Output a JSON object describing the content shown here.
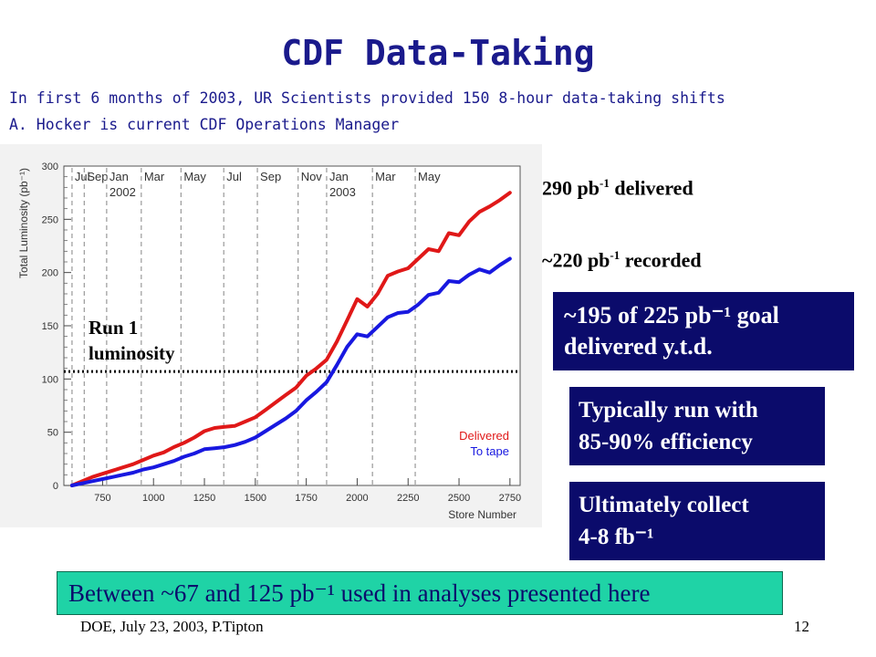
{
  "slide": {
    "title": "CDF Data-Taking",
    "subtitle_1": "In first 6 months of 2003, UR Scientists provided 150 8-hour data-taking shifts",
    "subtitle_2": "A. Hocker is current CDF Operations Manager",
    "footer_left": "DOE, July 23, 2003,  P.Tipton",
    "page_number": "12"
  },
  "notes": {
    "delivered_value": "290 pb",
    "delivered_exp": "-1",
    "delivered_suffix": " delivered",
    "recorded_value": "~220 pb",
    "recorded_exp": "-1",
    "recorded_suffix": " recorded"
  },
  "boxes": {
    "goal_line1": "~195 of 225 pb⁻¹ goal",
    "goal_line2": "delivered    y.t.d.",
    "efficiency_line1": "Typically run with",
    "efficiency_line2": "85-90% efficiency",
    "collect_line1": "Ultimately collect",
    "collect_line2": "4-8 fb⁻¹",
    "analyses": "Between ~67 and 125 pb⁻¹  used in analyses presented here"
  },
  "colors": {
    "title": "#1a1a8c",
    "delivered": "#e01818",
    "to_tape": "#1818e0",
    "note_red": "#cc1111",
    "note_navy": "#0b0b6b",
    "box_fill": "#0b0b6b",
    "bottom_fill": "#1fd3a6"
  },
  "chart_data": {
    "type": "line",
    "xlabel": "Store Number",
    "ylabel": "Total Luminosity (pb⁻¹)",
    "xlim": [
      560,
      2800
    ],
    "ylim": [
      0,
      300
    ],
    "x_ticks": [
      750,
      1000,
      1250,
      1500,
      1750,
      2000,
      2250,
      2500,
      2750
    ],
    "y_ticks": [
      0,
      50,
      100,
      150,
      200,
      250,
      300
    ],
    "grid": false,
    "legend_position": "bottom-right",
    "month_markers": [
      {
        "x": 600,
        "label": "Jul",
        "year": ""
      },
      {
        "x": 660,
        "label": "Sep",
        "year": ""
      },
      {
        "x": 770,
        "label": "Jan",
        "year": "2002"
      },
      {
        "x": 940,
        "label": "Mar",
        "year": ""
      },
      {
        "x": 1135,
        "label": "May",
        "year": ""
      },
      {
        "x": 1345,
        "label": "Jul",
        "year": ""
      },
      {
        "x": 1510,
        "label": "Sep",
        "year": ""
      },
      {
        "x": 1710,
        "label": "Nov",
        "year": ""
      },
      {
        "x": 1850,
        "label": "Jan",
        "year": "2003"
      },
      {
        "x": 2075,
        "label": "Mar",
        "year": ""
      },
      {
        "x": 2285,
        "label": "May",
        "year": ""
      }
    ],
    "reference_line": {
      "label": "Run 1\nluminosity",
      "y": 107
    },
    "series": [
      {
        "name": "Delivered",
        "color": "#e01818",
        "x": [
          600,
          650,
          700,
          750,
          800,
          850,
          900,
          950,
          1000,
          1050,
          1100,
          1150,
          1200,
          1250,
          1300,
          1350,
          1400,
          1450,
          1500,
          1550,
          1600,
          1650,
          1700,
          1750,
          1800,
          1850,
          1900,
          1950,
          2000,
          2050,
          2100,
          2150,
          2200,
          2250,
          2300,
          2350,
          2400,
          2450,
          2500,
          2550,
          2600,
          2650,
          2700,
          2750
        ],
        "y": [
          0,
          4,
          8,
          11,
          14,
          17,
          20,
          24,
          28,
          31,
          36,
          40,
          45,
          51,
          54,
          55,
          56,
          60,
          64,
          71,
          78,
          85,
          92,
          103,
          110,
          118,
          135,
          155,
          175,
          168,
          180,
          197,
          201,
          204,
          213,
          222,
          220,
          237,
          235,
          248,
          257,
          262,
          268,
          275
        ]
      },
      {
        "name": "To tape",
        "color": "#1818e0",
        "x": [
          600,
          650,
          700,
          750,
          800,
          850,
          900,
          950,
          1000,
          1050,
          1100,
          1150,
          1200,
          1250,
          1300,
          1350,
          1400,
          1450,
          1500,
          1550,
          1600,
          1650,
          1700,
          1750,
          1800,
          1850,
          1900,
          1950,
          2000,
          2050,
          2100,
          2150,
          2200,
          2250,
          2300,
          2350,
          2400,
          2450,
          2500,
          2550,
          2600,
          2650,
          2700,
          2750
        ],
        "y": [
          0,
          2,
          4,
          6,
          8,
          10,
          12,
          15,
          17,
          20,
          23,
          27,
          30,
          34,
          35,
          36,
          38,
          41,
          45,
          51,
          57,
          63,
          70,
          80,
          88,
          97,
          113,
          130,
          142,
          140,
          149,
          158,
          162,
          163,
          170,
          179,
          181,
          192,
          191,
          198,
          203,
          200,
          207,
          213
        ]
      }
    ]
  }
}
